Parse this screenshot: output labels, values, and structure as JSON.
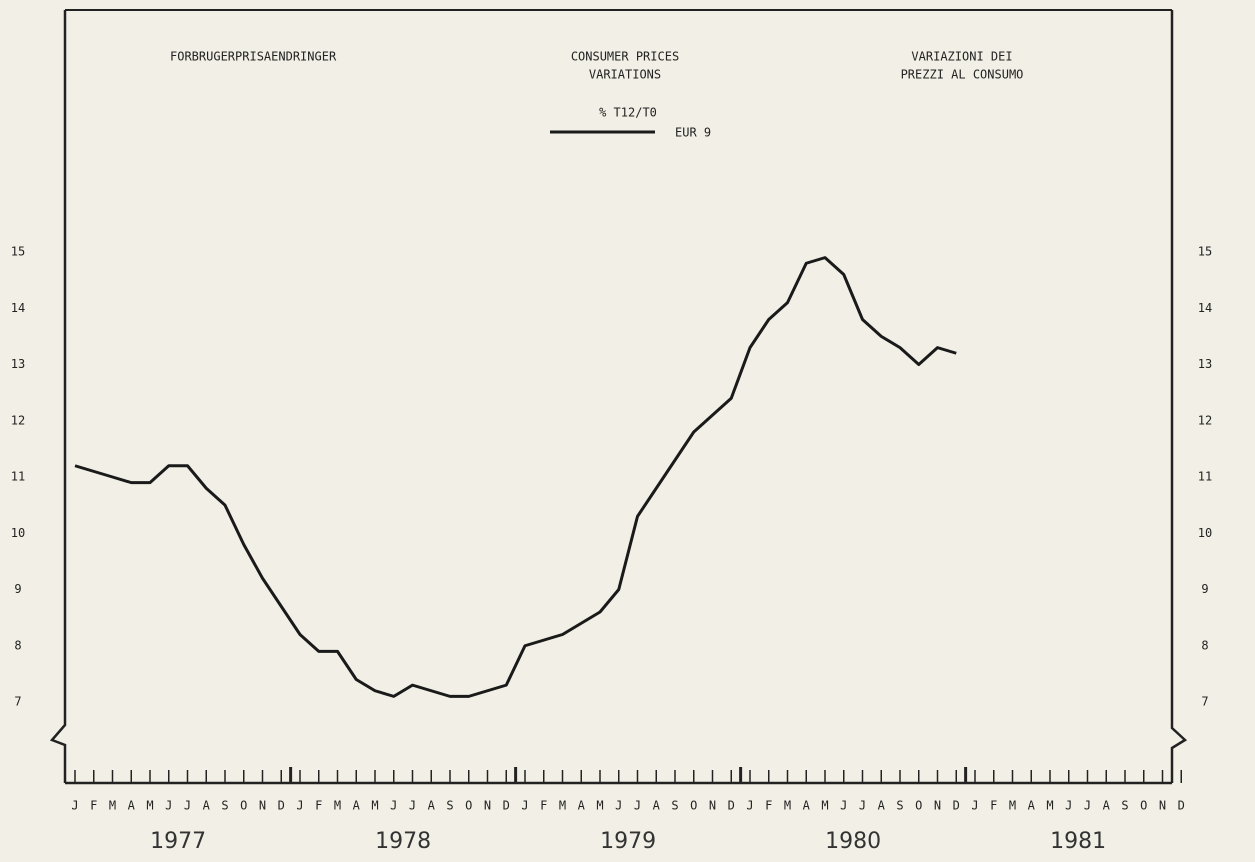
{
  "chart_data": {
    "type": "line",
    "title_left": "FORBRUGERPRISAENDRINGER",
    "title_center": [
      "CONSUMER PRICES",
      "VARIATIONS"
    ],
    "title_right": [
      "VARIAZIONI DEI",
      "PREZZI AL CONSUMO"
    ],
    "subtitle": "% T12/T0",
    "categories": [
      "J",
      "F",
      "M",
      "A",
      "M",
      "J",
      "J",
      "A",
      "S",
      "O",
      "N",
      "D",
      "J",
      "F",
      "M",
      "A",
      "M",
      "J",
      "J",
      "A",
      "S",
      "O",
      "N",
      "D",
      "J",
      "F",
      "M",
      "A",
      "M",
      "J",
      "J",
      "A",
      "S",
      "O",
      "N",
      "D",
      "J",
      "F",
      "M",
      "A",
      "M",
      "J",
      "J",
      "A",
      "S",
      "O",
      "N",
      "D",
      "J",
      "F",
      "M",
      "A",
      "M",
      "J",
      "J",
      "A",
      "S",
      "O",
      "N",
      "D"
    ],
    "years": [
      "1977",
      "1978",
      "1979",
      "1980",
      "1981"
    ],
    "series": [
      {
        "name": "EUR 9",
        "color": "#1a1a1a",
        "values": [
          11.2,
          11.1,
          11.0,
          10.9,
          10.9,
          11.2,
          11.2,
          10.8,
          10.5,
          9.8,
          9.2,
          8.7,
          8.2,
          7.9,
          7.9,
          7.4,
          7.2,
          7.1,
          7.3,
          7.2,
          7.1,
          7.1,
          7.2,
          7.3,
          8.0,
          8.1,
          8.2,
          8.4,
          8.6,
          9.0,
          10.3,
          10.8,
          11.3,
          11.8,
          12.1,
          12.4,
          13.3,
          13.8,
          14.1,
          14.8,
          14.9,
          14.6,
          13.8,
          13.5,
          13.3,
          13.0,
          13.3,
          13.2,
          null,
          null,
          null,
          null,
          null,
          null,
          null,
          null,
          null,
          null,
          null,
          null
        ]
      }
    ],
    "ylim": [
      7,
      15
    ],
    "yticks": [
      7,
      8,
      9,
      10,
      11,
      12,
      13,
      14,
      15
    ],
    "y2lim": [
      7,
      15
    ],
    "y2ticks": [
      7,
      8,
      9,
      10,
      11,
      12,
      13,
      14,
      15
    ],
    "grid": false
  }
}
